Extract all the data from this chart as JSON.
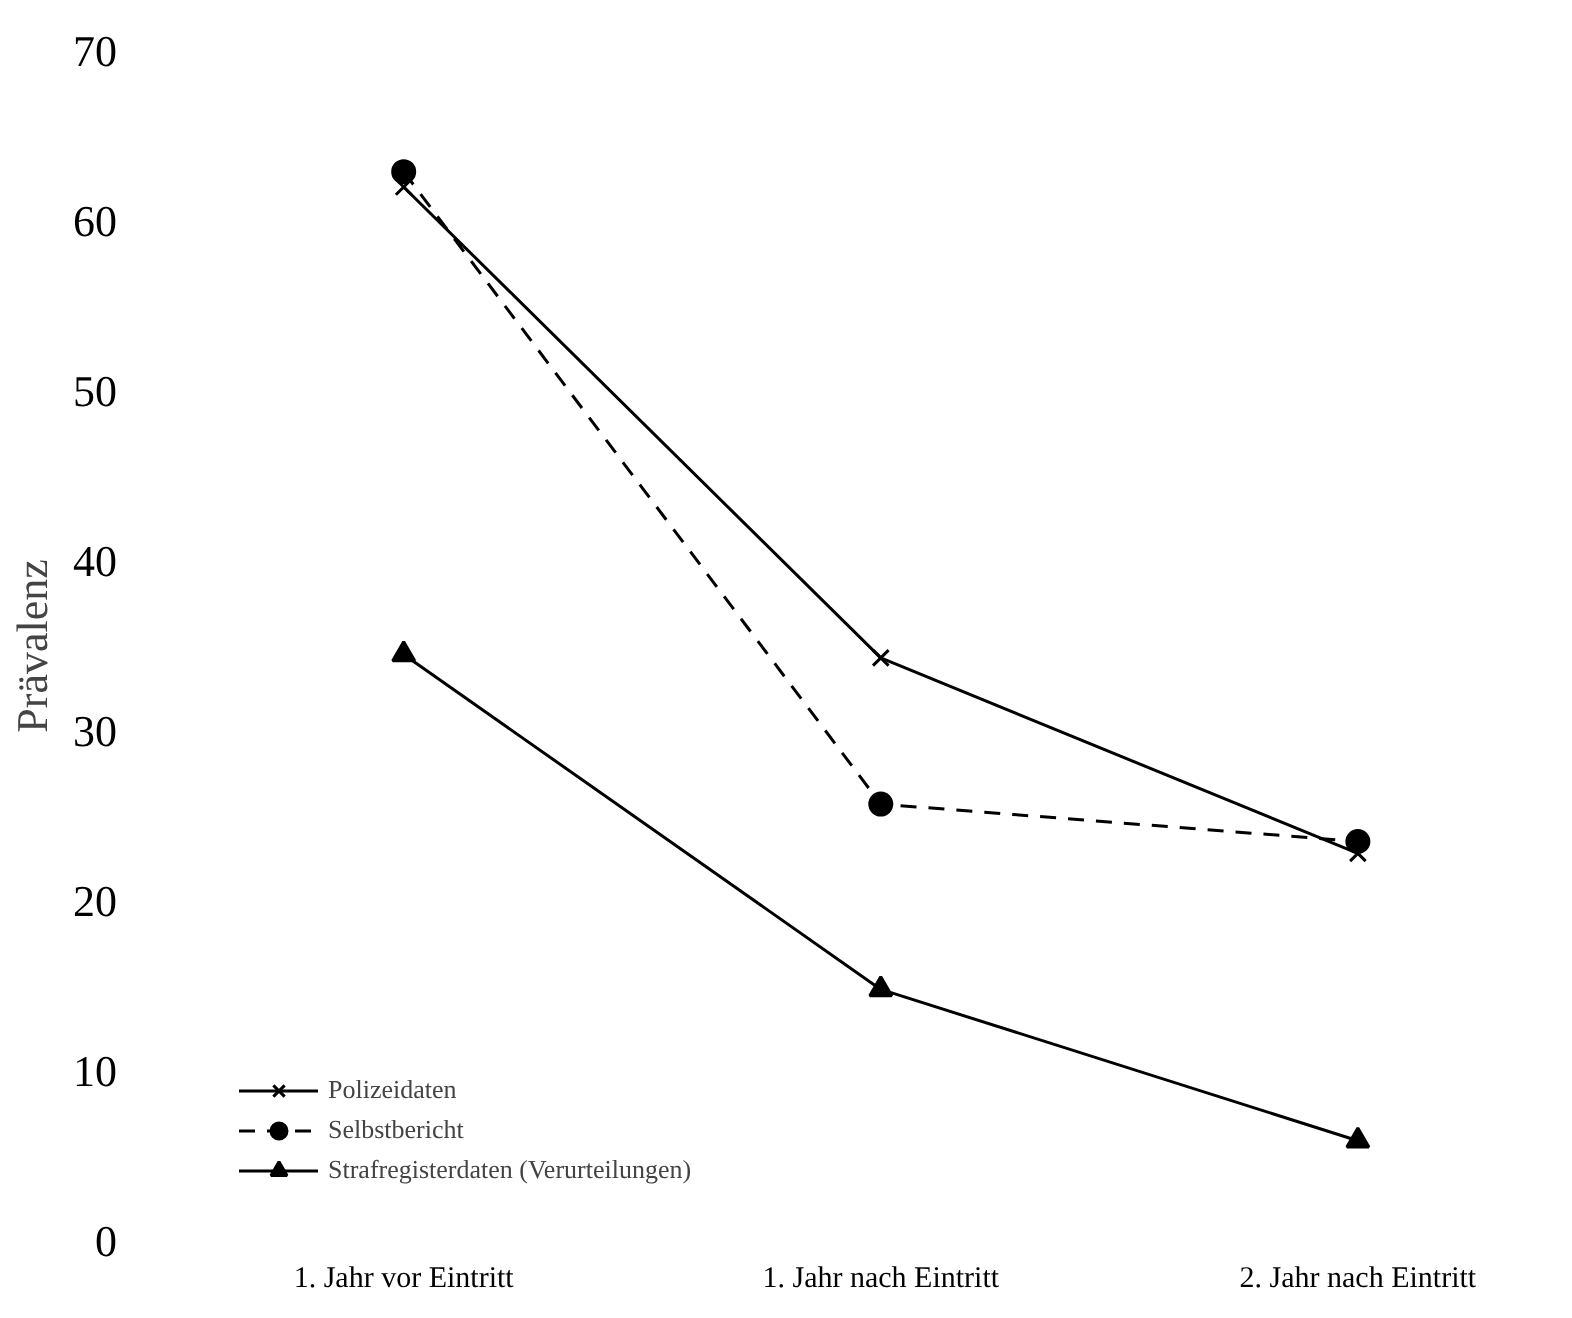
{
  "chart_data": {
    "type": "line",
    "ylabel": "Prävalenz",
    "categories": [
      "1. Jahr vor Eintritt",
      "1. Jahr nach Eintritt",
      "2. Jahr nach Eintritt"
    ],
    "ylim": [
      0,
      70
    ],
    "yticks": [
      0,
      10,
      20,
      30,
      40,
      50,
      60,
      70
    ],
    "grid": false,
    "legend": "bottom left",
    "series": [
      {
        "name": "Polizeidaten",
        "color": "#000000",
        "marker": "cross",
        "line_style": "solid",
        "values": [
          62.0,
          34.3,
          22.8
        ]
      },
      {
        "name": "Selbstbericht",
        "color": "#000000",
        "marker": "circle",
        "line_style": "dashed",
        "values": [
          62.9,
          25.7,
          23.5
        ]
      },
      {
        "name": "Strafregisterdaten (Verurteilungen)",
        "color": "#000000",
        "marker": "triangle",
        "line_style": "solid",
        "values": [
          34.5,
          14.8,
          5.9
        ]
      }
    ]
  }
}
